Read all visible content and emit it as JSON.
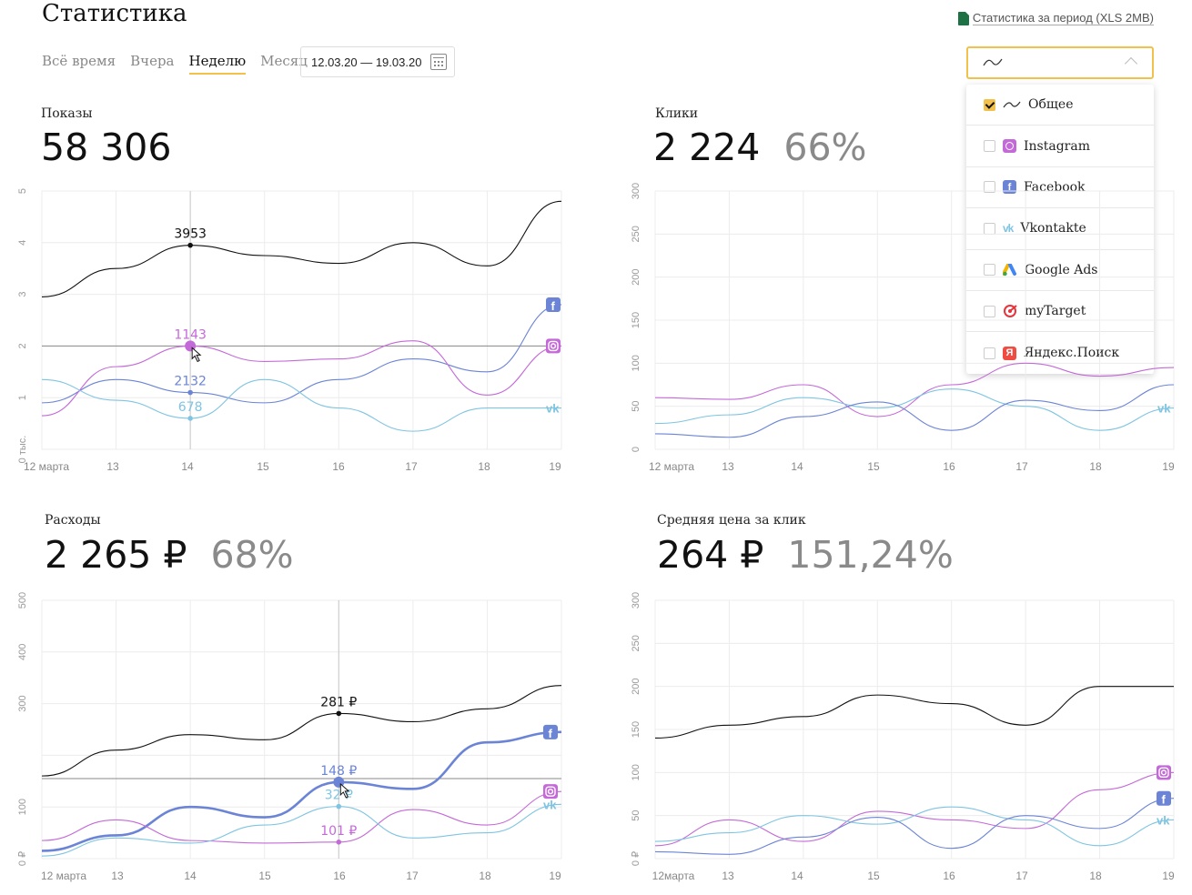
{
  "header": {
    "title": "Статистика",
    "export_label": "Статистика за период (XLS 2MB)"
  },
  "period_tabs": [
    {
      "label": "Всё время",
      "active": false
    },
    {
      "label": "Вчера",
      "active": false
    },
    {
      "label": "Неделю",
      "active": true
    },
    {
      "label": "Месяц",
      "active": false
    }
  ],
  "date_range": "12.03.20 — 19.03.20",
  "source_select": {
    "selected_icon": "line-chart-icon",
    "options": [
      {
        "label": "Общее",
        "icon": "line-chart-icon",
        "checked": true
      },
      {
        "label": "Instagram",
        "icon": "instagram-icon",
        "checked": false
      },
      {
        "label": "Facebook",
        "icon": "facebook-icon",
        "checked": false
      },
      {
        "label": "Vkontakte",
        "icon": "vk-icon",
        "checked": false
      },
      {
        "label": "Google Ads",
        "icon": "google-ads-icon",
        "checked": false
      },
      {
        "label": "myTarget",
        "icon": "mytarget-icon",
        "checked": false
      },
      {
        "label": "Яндекс.Поиск",
        "icon": "yandex-icon",
        "checked": false
      }
    ]
  },
  "colors": {
    "total": "#111111",
    "instagram": "#c46ad8",
    "facebook": "#6b84d6",
    "vk": "#7fc4e2",
    "accent": "#f2c14b",
    "grid": "#ececec"
  },
  "metrics": {
    "shows": {
      "label": "Показы",
      "value": "58 306"
    },
    "clicks": {
      "label": "Клики",
      "value": "2 224",
      "pct": "66%"
    },
    "spend": {
      "label": "Расходы",
      "value": "2 265 ₽",
      "pct": "68%"
    },
    "cpc": {
      "label": "Средняя цена за клик",
      "value": "264 ₽",
      "pct": "151,24%"
    }
  },
  "chart_data": [
    {
      "type": "line",
      "title": "Показы",
      "x": [
        "12 марта",
        "13",
        "14",
        "15",
        "16",
        "17",
        "18",
        "19"
      ],
      "y_ticks": [
        "0 тыс.",
        "1",
        "2",
        "3",
        "4",
        "5"
      ],
      "ylim": [
        0,
        5
      ],
      "series": [
        {
          "name": "Общее",
          "color_key": "total",
          "values": [
            2.95,
            3.5,
            3.95,
            3.75,
            3.6,
            4.0,
            3.55,
            4.8
          ]
        },
        {
          "name": "Facebook",
          "color_key": "facebook",
          "values": [
            0.9,
            1.35,
            1.1,
            0.9,
            1.35,
            1.75,
            1.5,
            2.8
          ]
        },
        {
          "name": "Instagram",
          "color_key": "instagram",
          "values": [
            0.65,
            1.6,
            2.0,
            1.7,
            1.75,
            2.1,
            1.05,
            2.0
          ]
        },
        {
          "name": "Vkontakte",
          "color_key": "vk",
          "values": [
            1.35,
            0.95,
            0.6,
            1.35,
            0.8,
            0.35,
            0.8,
            0.8
          ]
        }
      ],
      "highlight": {
        "x_index": 2,
        "labels": [
          "3953",
          "2132",
          "1143",
          "678"
        ],
        "reference_y": 2.0
      },
      "end_icons": [
        "facebook-icon",
        "instagram-icon",
        "vk-icon"
      ]
    },
    {
      "type": "line",
      "title": "Клики",
      "x": [
        "12 марта",
        "13",
        "14",
        "15",
        "16",
        "17",
        "18",
        "19"
      ],
      "y_ticks": [
        "0",
        "50",
        "100",
        "150",
        "200",
        "250",
        "300"
      ],
      "ylim": [
        0,
        300
      ],
      "series": [
        {
          "name": "Instagram",
          "color_key": "instagram",
          "values": [
            60,
            58,
            75,
            38,
            75,
            100,
            85,
            95
          ]
        },
        {
          "name": "Vkontakte",
          "color_key": "vk",
          "values": [
            30,
            40,
            60,
            48,
            70,
            50,
            22,
            48
          ]
        },
        {
          "name": "Facebook",
          "color_key": "facebook",
          "values": [
            18,
            14,
            38,
            55,
            22,
            57,
            45,
            75
          ]
        }
      ],
      "end_icons": [
        "vk-icon"
      ]
    },
    {
      "type": "line",
      "title": "Расходы",
      "x": [
        "12 марта",
        "13",
        "14",
        "15",
        "16",
        "17",
        "18",
        "19"
      ],
      "y_ticks": [
        "0 ₽",
        "100",
        "",
        "300",
        "400",
        "500"
      ],
      "ylim": [
        0,
        500
      ],
      "series": [
        {
          "name": "Общее",
          "color_key": "total",
          "values": [
            160,
            210,
            240,
            230,
            281,
            265,
            290,
            335
          ]
        },
        {
          "name": "Facebook",
          "color_key": "facebook",
          "values": [
            15,
            45,
            100,
            80,
            148,
            135,
            225,
            245
          ]
        },
        {
          "name": "Instagram",
          "color_key": "instagram",
          "values": [
            35,
            75,
            35,
            30,
            32,
            95,
            65,
            130
          ]
        },
        {
          "name": "Vkontakte",
          "color_key": "vk",
          "values": [
            5,
            40,
            30,
            65,
            101,
            40,
            50,
            105
          ]
        }
      ],
      "highlight": {
        "x_index": 4,
        "labels": [
          "281 ₽",
          "148 ₽",
          "101 ₽",
          "32 ₽"
        ],
        "reference_y": 155
      },
      "end_icons": [
        "facebook-icon",
        "instagram-icon",
        "vk-icon"
      ]
    },
    {
      "type": "line",
      "title": "Средняя цена за клик",
      "x": [
        "12марта",
        "13",
        "14",
        "15",
        "16",
        "17",
        "18",
        "19"
      ],
      "y_ticks": [
        "0 ₽",
        "50",
        "100",
        "150",
        "200",
        "250",
        "300"
      ],
      "ylim": [
        0,
        300
      ],
      "series": [
        {
          "name": "Общее",
          "color_key": "total",
          "values": [
            140,
            155,
            165,
            190,
            180,
            155,
            200,
            200
          ]
        },
        {
          "name": "Instagram",
          "color_key": "instagram",
          "values": [
            15,
            45,
            20,
            55,
            45,
            35,
            80,
            100
          ]
        },
        {
          "name": "Vkontakte",
          "color_key": "vk",
          "values": [
            20,
            30,
            50,
            40,
            60,
            45,
            15,
            45
          ]
        },
        {
          "name": "Facebook",
          "color_key": "facebook",
          "values": [
            8,
            5,
            25,
            48,
            12,
            50,
            35,
            70
          ]
        }
      ],
      "end_icons": [
        "instagram-icon",
        "facebook-icon",
        "vk-icon"
      ]
    }
  ]
}
